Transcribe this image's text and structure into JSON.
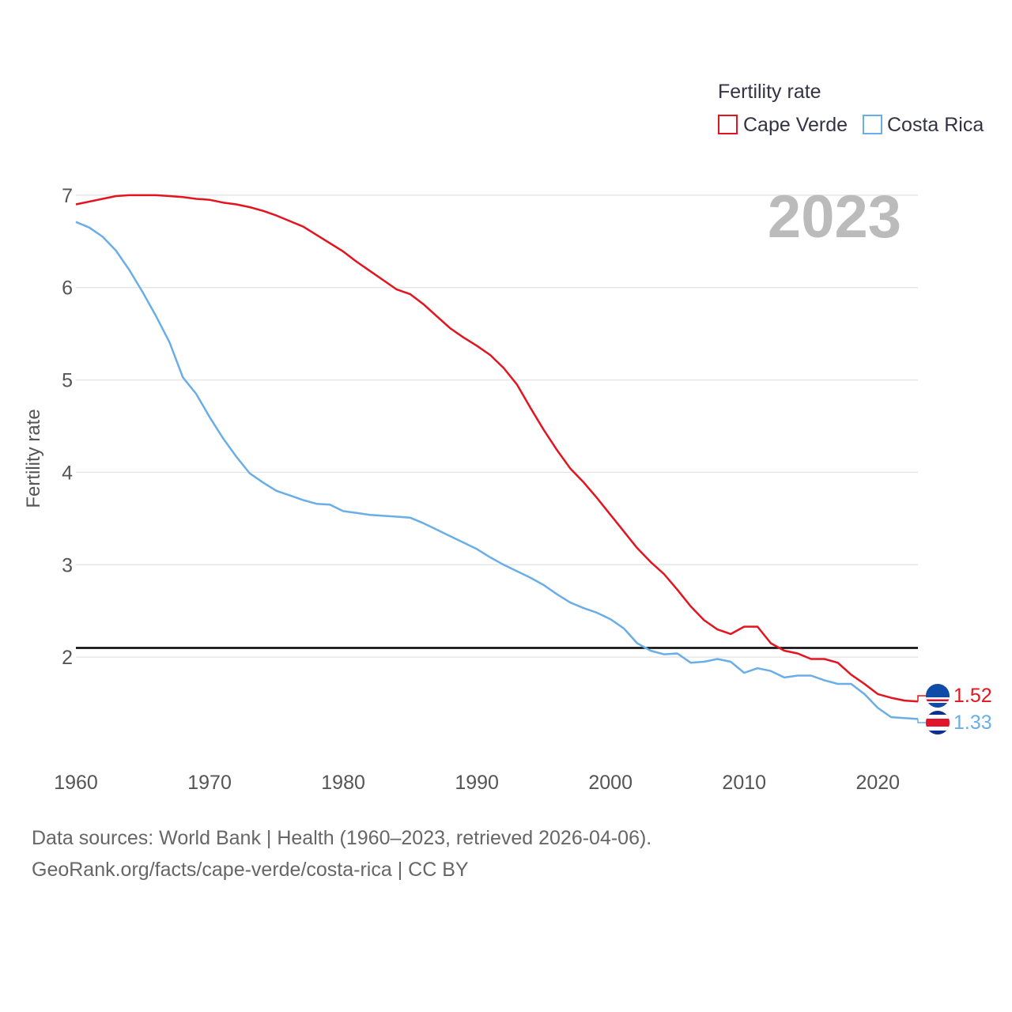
{
  "chart_data": {
    "type": "line",
    "title": "",
    "xlabel": "",
    "ylabel": "Fertility rate",
    "xlim": [
      1960,
      2023
    ],
    "ylim": [
      1,
      7.2
    ],
    "x_ticks": [
      1960,
      1970,
      1980,
      1990,
      2000,
      2010,
      2020
    ],
    "y_ticks": [
      2,
      3,
      4,
      5,
      6,
      7
    ],
    "year_label": "2023",
    "legend": {
      "title": "Fertility rate",
      "position": "top-right",
      "items": [
        "Cape Verde",
        "Costa Rica"
      ]
    },
    "reference_line": {
      "value": 2.1,
      "color": "#000000"
    },
    "x": [
      1960,
      1961,
      1962,
      1963,
      1964,
      1965,
      1966,
      1967,
      1968,
      1969,
      1970,
      1971,
      1972,
      1973,
      1974,
      1975,
      1976,
      1977,
      1978,
      1979,
      1980,
      1981,
      1982,
      1983,
      1984,
      1985,
      1986,
      1987,
      1988,
      1989,
      1990,
      1991,
      1992,
      1993,
      1994,
      1995,
      1996,
      1997,
      1998,
      1999,
      2000,
      2001,
      2002,
      2003,
      2004,
      2005,
      2006,
      2007,
      2008,
      2009,
      2010,
      2011,
      2012,
      2013,
      2014,
      2015,
      2016,
      2017,
      2018,
      2019,
      2020,
      2021,
      2022,
      2023
    ],
    "series": [
      {
        "name": "Cape Verde",
        "color": "#e3141f",
        "end_label": "1.52",
        "flag": "cape-verde",
        "values": [
          6.9,
          6.93,
          6.96,
          6.99,
          7.0,
          7.0,
          7.0,
          6.99,
          6.98,
          6.96,
          6.95,
          6.92,
          6.9,
          6.87,
          6.83,
          6.78,
          6.72,
          6.66,
          6.57,
          6.48,
          6.39,
          6.28,
          6.18,
          6.08,
          5.98,
          5.93,
          5.82,
          5.69,
          5.56,
          5.46,
          5.37,
          5.27,
          5.13,
          4.95,
          4.7,
          4.46,
          4.24,
          4.04,
          3.89,
          3.72,
          3.54,
          3.36,
          3.18,
          3.03,
          2.9,
          2.73,
          2.55,
          2.4,
          2.3,
          2.25,
          2.33,
          2.33,
          2.15,
          2.07,
          2.04,
          1.98,
          1.98,
          1.94,
          1.81,
          1.71,
          1.6,
          1.56,
          1.53,
          1.52
        ]
      },
      {
        "name": "Costa Rica",
        "color": "#6aaee8",
        "end_label": "1.33",
        "flag": "costa-rica",
        "values": [
          6.71,
          6.65,
          6.55,
          6.4,
          6.19,
          5.95,
          5.69,
          5.41,
          5.03,
          4.85,
          4.6,
          4.37,
          4.17,
          3.99,
          3.89,
          3.8,
          3.75,
          3.7,
          3.66,
          3.65,
          3.58,
          3.56,
          3.54,
          3.53,
          3.52,
          3.51,
          3.45,
          3.38,
          3.31,
          3.24,
          3.17,
          3.08,
          3.0,
          2.93,
          2.86,
          2.78,
          2.68,
          2.59,
          2.53,
          2.48,
          2.41,
          2.31,
          2.15,
          2.07,
          2.03,
          2.04,
          1.94,
          1.95,
          1.98,
          1.95,
          1.83,
          1.88,
          1.85,
          1.78,
          1.8,
          1.8,
          1.75,
          1.71,
          1.71,
          1.6,
          1.45,
          1.35,
          1.34,
          1.33
        ]
      }
    ]
  },
  "footer": {
    "line1": "Data sources: World Bank | Health (1960–2023, retrieved 2026-04-06).",
    "line2": "GeoRank.org/facts/cape-verde/costa-rica | CC BY"
  }
}
